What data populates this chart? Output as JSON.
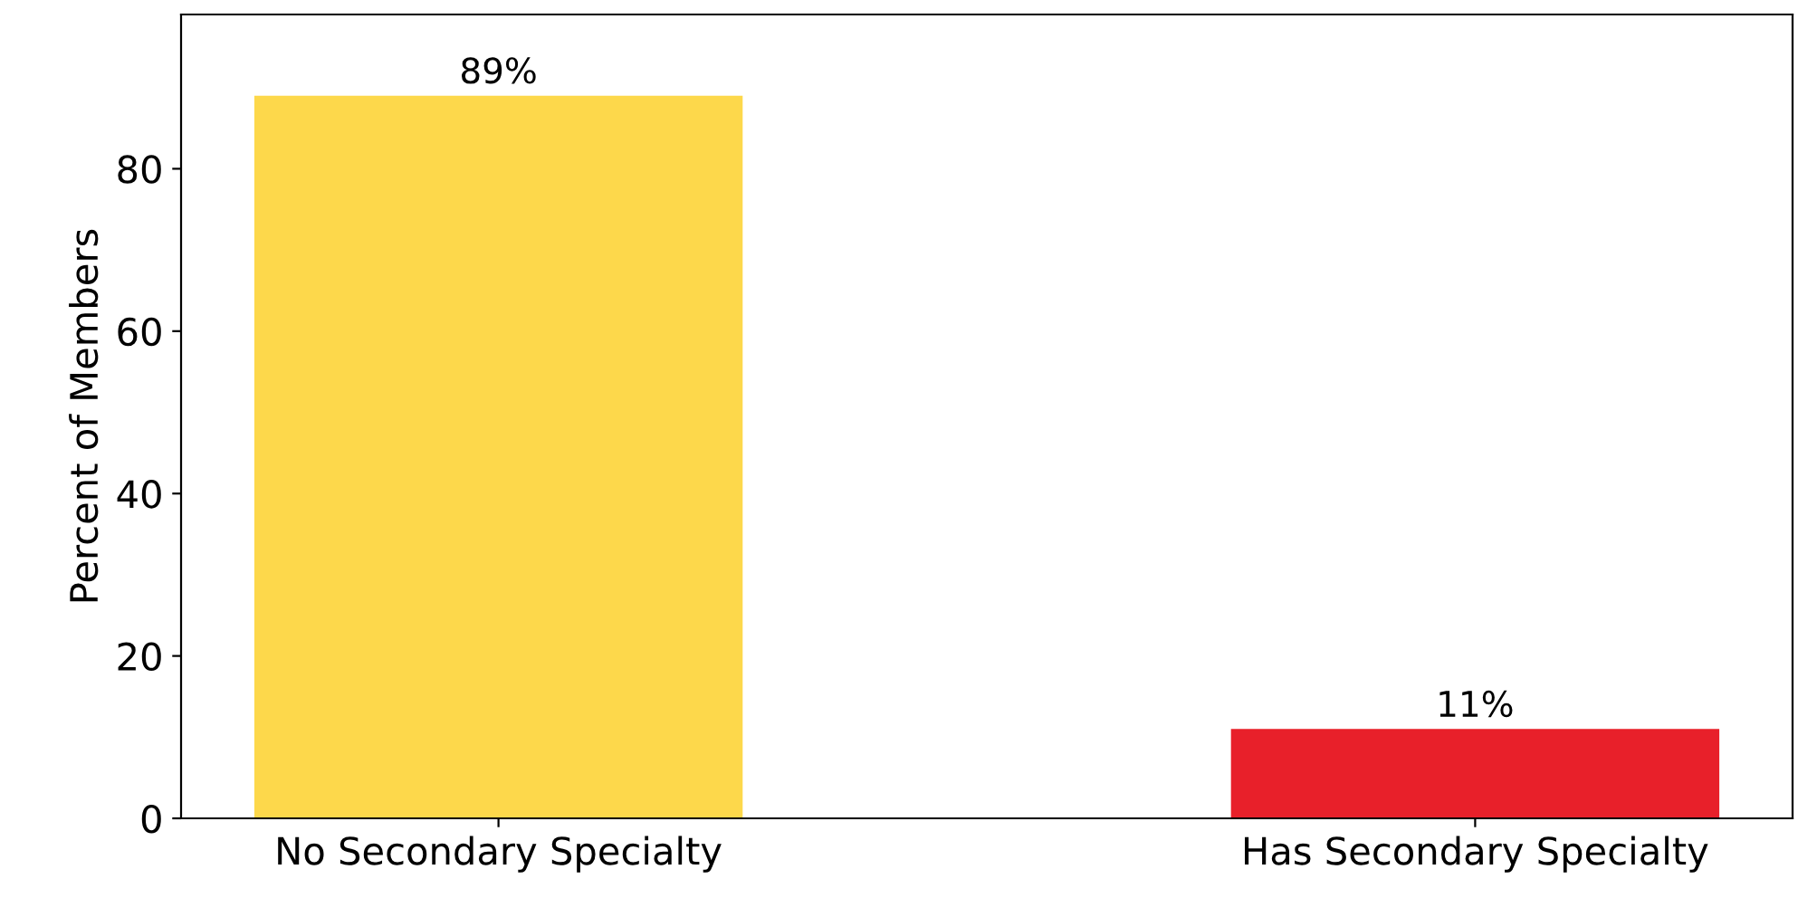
{
  "chart_data": {
    "type": "bar",
    "ylabel": "Percent of Members",
    "categories": [
      "No Secondary Specialty",
      "Has Secondary Specialty"
    ],
    "values": [
      89,
      11
    ],
    "colors": [
      "#fdd84b",
      "#e8202a"
    ],
    "value_labels": [
      "89%",
      "11%"
    ],
    "ylim": [
      0,
      99
    ],
    "yticks": [
      0,
      20,
      40,
      60,
      80
    ],
    "grid": false
  }
}
